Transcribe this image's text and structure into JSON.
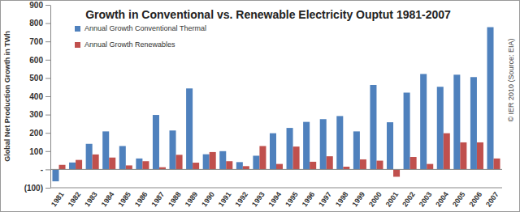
{
  "chart_data": {
    "type": "bar",
    "title": "Growth in Conventional vs. Renewable Electricity Ouptut 1981-2007",
    "y_label": "Global Net Production Growth in TWh",
    "annotations": [
      "© IER 2010 (Source: EIA)"
    ],
    "categories": [
      "1981",
      "1982",
      "1983",
      "1984",
      "1985",
      "1986",
      "1987",
      "1988",
      "1989",
      "1990",
      "1991",
      "1992",
      "1993",
      "1994",
      "1995",
      "1996",
      "1997",
      "1998",
      "1999",
      "2000",
      "2001",
      "2002",
      "2003",
      "2004",
      "2005",
      "2006",
      "2007"
    ],
    "series": [
      {
        "name": "Annual Growth Conventional Thermal",
        "color": "#4f81bd",
        "values": [
          -65,
          38,
          140,
          208,
          128,
          60,
          298,
          213,
          443,
          83,
          100,
          40,
          75,
          198,
          227,
          260,
          275,
          292,
          208,
          462,
          258,
          420,
          522,
          452,
          518,
          505,
          778
        ]
      },
      {
        "name": "Annual Growth Renewables",
        "color": "#c0504d",
        "values": [
          25,
          52,
          82,
          65,
          22,
          45,
          12,
          80,
          37,
          95,
          45,
          18,
          128,
          30,
          125,
          42,
          72,
          15,
          55,
          48,
          -40,
          68,
          30,
          198,
          148,
          148,
          60
        ]
      }
    ],
    "ylim": [
      -100,
      900
    ],
    "yticks": [
      {
        "value": -100,
        "label": "(100)"
      },
      {
        "value": 0,
        "label": "-"
      },
      100,
      200,
      300,
      400,
      500,
      600,
      700,
      800,
      900
    ],
    "grid": false,
    "legend": "top-left"
  }
}
